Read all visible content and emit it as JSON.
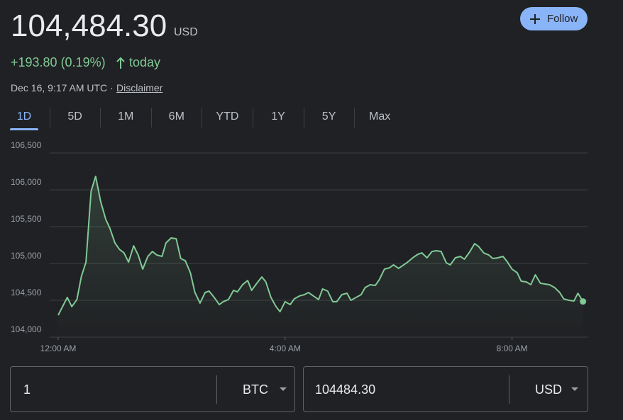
{
  "header": {
    "price": "104,484.30",
    "currency": "USD",
    "change": "+193.80 (0.19%)",
    "change_period": "today",
    "timestamp": "Dec 16, 9:17 AM UTC ·",
    "disclaimer": "Disclaimer",
    "follow": "Follow"
  },
  "tabs": [
    "1D",
    "5D",
    "1M",
    "6M",
    "YTD",
    "1Y",
    "5Y",
    "Max"
  ],
  "converter": {
    "amount": "1",
    "from": "BTC",
    "result": "104484.30",
    "to": "USD"
  },
  "chart_data": {
    "type": "line",
    "color": "#81c995",
    "grid": true,
    "x": [
      0,
      0.16,
      0.24,
      0.33,
      0.41,
      0.49,
      0.58,
      0.66,
      0.75,
      0.84,
      0.91,
      1,
      1.08,
      1.16,
      1.24,
      1.33,
      1.41,
      1.49,
      1.58,
      1.66,
      1.74,
      1.83,
      1.9,
      1.99,
      2.08,
      2.16,
      2.24,
      2.33,
      2.41,
      2.5,
      2.59,
      2.66,
      2.75,
      2.84,
      2.91,
      3,
      3.09,
      3.16,
      3.25,
      3.34,
      3.41,
      3.5,
      3.59,
      3.66,
      3.75,
      3.84,
      3.91,
      4,
      4.09,
      4.16,
      4.25,
      4.34,
      4.41,
      4.5,
      4.59,
      4.66,
      4.75,
      4.84,
      4.91,
      5,
      5.09,
      5.16,
      5.25,
      5.34,
      5.41,
      5.5,
      5.59,
      5.66,
      5.75,
      5.84,
      5.91,
      6,
      6.09,
      6.16,
      6.25,
      6.34,
      6.41,
      6.5,
      6.59,
      6.66,
      6.75,
      6.84,
      6.91,
      7,
      7.09,
      7.16,
      7.25,
      7.34,
      7.41,
      7.5,
      7.59,
      7.66,
      7.75,
      7.84,
      7.91,
      8,
      8.09,
      8.16,
      8.25,
      8.33,
      8.41,
      8.5,
      8.58,
      8.66,
      8.75,
      8.84,
      8.91,
      9,
      9.09,
      9.16,
      9.25
    ],
    "values": [
      104298,
      104539,
      104414,
      104510,
      104827,
      105019,
      105981,
      106183,
      105837,
      105596,
      105481,
      105279,
      105192,
      105144,
      105019,
      105240,
      105115,
      104923,
      105096,
      105163,
      105115,
      105096,
      105279,
      105346,
      105337,
      105067,
      105038,
      104875,
      104606,
      104462,
      104606,
      104625,
      104539,
      104442,
      104481,
      104510,
      104635,
      104615,
      104712,
      104769,
      104635,
      104731,
      104817,
      104750,
      104539,
      104414,
      104346,
      104481,
      104442,
      104519,
      104558,
      104577,
      104606,
      104558,
      104510,
      104654,
      104625,
      104481,
      104481,
      104577,
      104596,
      104500,
      104539,
      104577,
      104673,
      104712,
      104702,
      104779,
      104923,
      104942,
      104981,
      104933,
      104981,
      105019,
      105077,
      105125,
      105144,
      105077,
      105163,
      105173,
      105163,
      105010,
      104981,
      105077,
      105096,
      105058,
      105154,
      105269,
      105231,
      105144,
      105115,
      105067,
      105077,
      105096,
      105029,
      104923,
      104875,
      104760,
      104750,
      104712,
      104846,
      104731,
      104721,
      104712,
      104673,
      104606,
      104519,
      104500,
      104490,
      104596,
      104484.3
    ],
    "xlim": [
      -0.15,
      9.33
    ],
    "xticks": [
      {
        "value": 0,
        "label": "12:00 AM"
      },
      {
        "value": 4,
        "label": "4:00 AM"
      },
      {
        "value": 8,
        "label": "8:00 AM"
      }
    ],
    "ylim": [
      104000,
      106500
    ],
    "yticks": [
      {
        "value": 104000,
        "label": "104,000"
      },
      {
        "value": 104500,
        "label": "104,500"
      },
      {
        "value": 105000,
        "label": "105,000"
      },
      {
        "value": 105500,
        "label": "105,500"
      },
      {
        "value": 106000,
        "label": "106,000"
      },
      {
        "value": 106500,
        "label": "106,500"
      }
    ]
  }
}
